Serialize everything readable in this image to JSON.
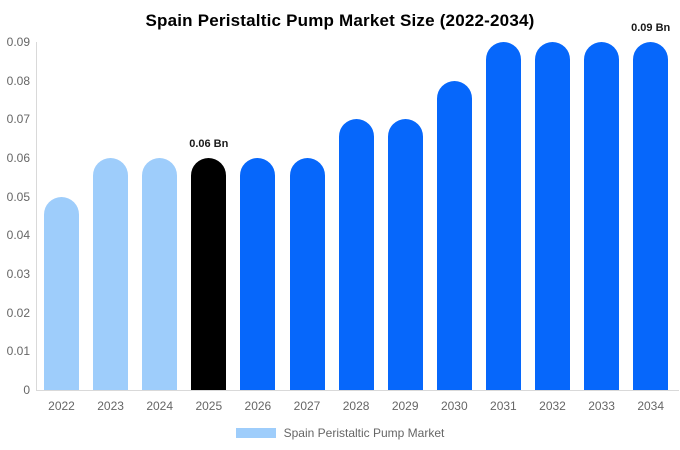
{
  "title": "Spain Peristaltic Pump Market Size (2022-2034)",
  "unit": "Bn",
  "colors": {
    "light_blue": "#9ECDFB",
    "blue": "#0667FB",
    "highlight_black": "#000000",
    "axis_line": "#D9D9D9",
    "tick_text": "#666666",
    "title_text": "#000000",
    "annotation_text": "#1A1A1A",
    "background": "#FFFFFF"
  },
  "legend": {
    "label": "Spain Peristaltic Pump Market",
    "swatch_color": "#9ECDFB"
  },
  "chart_data": {
    "type": "bar",
    "title": "Spain Peristaltic Pump Market Size (2022-2034)",
    "xlabel": "",
    "ylabel": "",
    "categories": [
      "2022",
      "2023",
      "2024",
      "2025",
      "2026",
      "2027",
      "2028",
      "2029",
      "2030",
      "2031",
      "2032",
      "2033",
      "2034"
    ],
    "values": [
      0.05,
      0.06,
      0.06,
      0.06,
      0.06,
      0.06,
      0.07,
      0.07,
      0.08,
      0.09,
      0.09,
      0.09,
      0.09
    ],
    "bar_colors": [
      "#9ECDFB",
      "#9ECDFB",
      "#9ECDFB",
      "#000000",
      "#0667FB",
      "#0667FB",
      "#0667FB",
      "#0667FB",
      "#0667FB",
      "#0667FB",
      "#0667FB",
      "#0667FB",
      "#0667FB"
    ],
    "annotations": [
      {
        "index": 3,
        "category": "2025",
        "label": "0.06 Bn"
      },
      {
        "index": 12,
        "category": "2034",
        "label": "0.09 Bn"
      }
    ],
    "ylim": [
      0,
      0.09
    ],
    "ytick_labels": [
      "0",
      "0.01",
      "0.02",
      "0.03",
      "0.04",
      "0.05",
      "0.06",
      "0.07",
      "0.08",
      "0.09"
    ],
    "grid": false,
    "legend_position": "bottom",
    "legend_entries": [
      "Spain Peristaltic Pump Market"
    ]
  }
}
